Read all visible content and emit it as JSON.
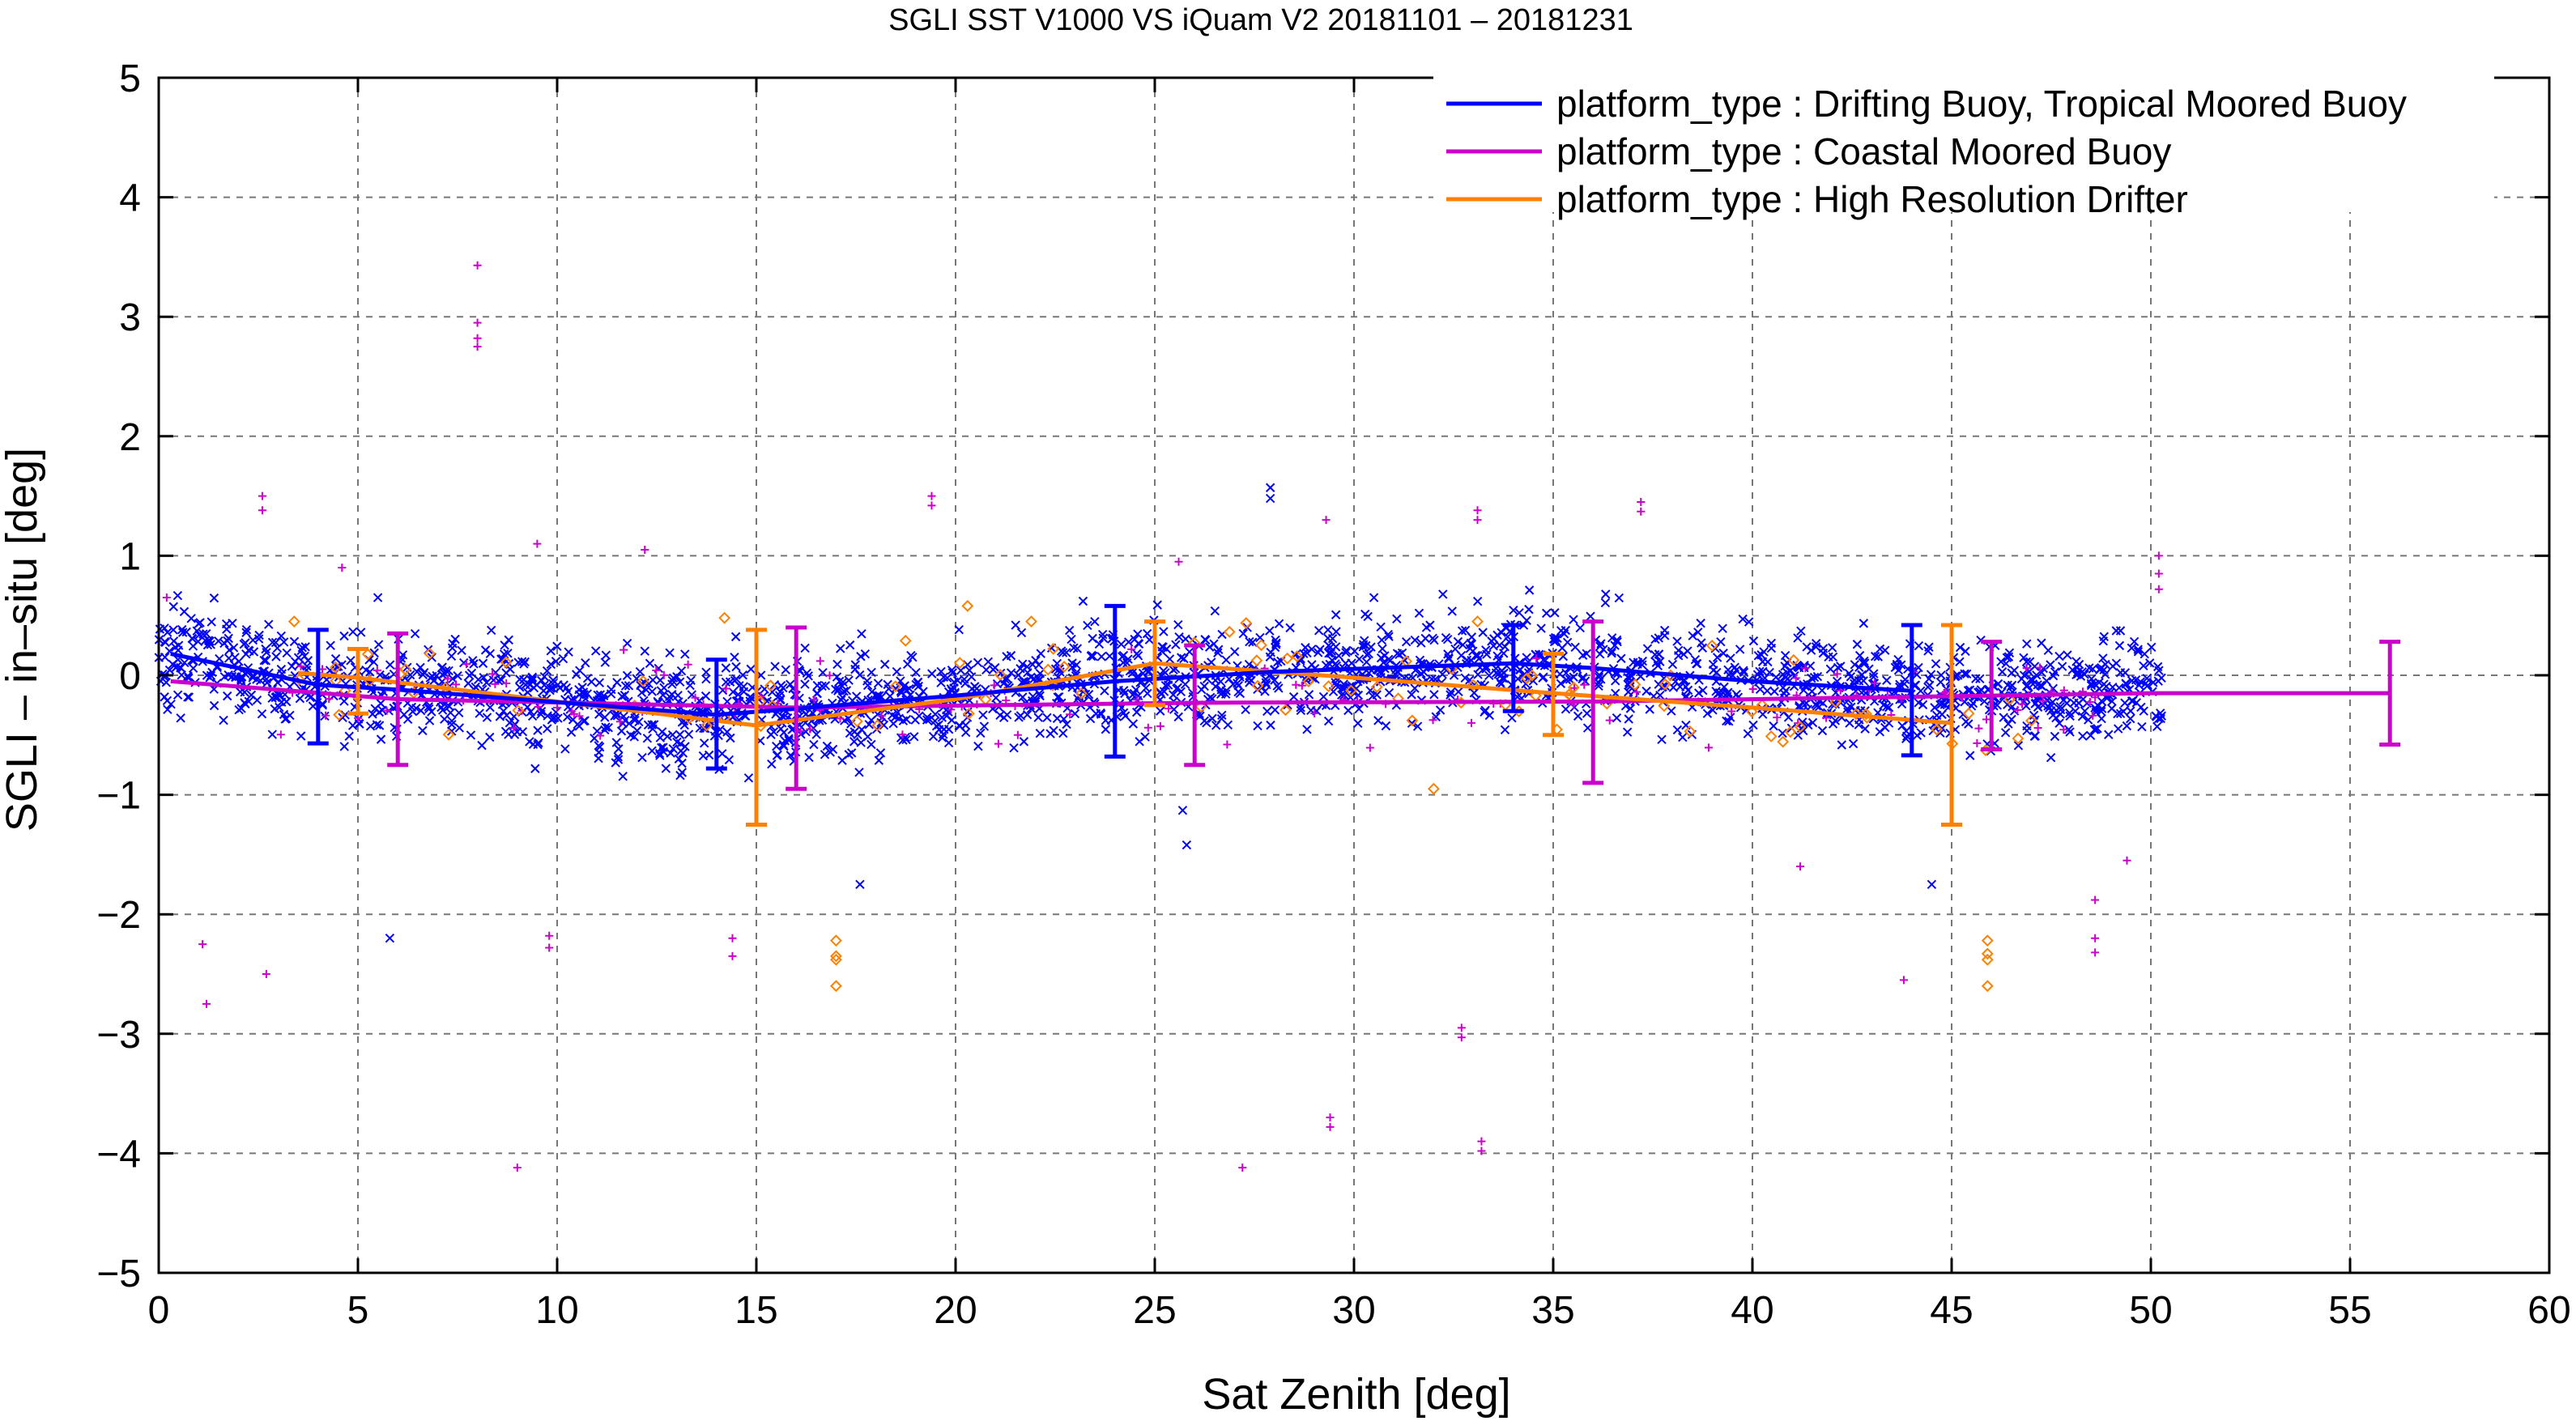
{
  "chart_data": {
    "type": "scatter",
    "title": "SGLI SST V1000 VS iQuam V2 20181101 – 20181231",
    "xlabel": "Sat Zenith [deg]",
    "ylabel": "SGLI – in–situ [deg]",
    "xlim": [
      0,
      60
    ],
    "ylim": [
      -5,
      5
    ],
    "xticks": [
      0,
      5,
      10,
      15,
      20,
      25,
      30,
      35,
      40,
      45,
      50,
      55,
      60
    ],
    "yticks": [
      -5,
      -4,
      -3,
      -2,
      -1,
      0,
      1,
      2,
      3,
      4,
      5
    ],
    "xtick_labels": [
      "0",
      "5",
      "10",
      "15",
      "20",
      "25",
      "30",
      "35",
      "40",
      "45",
      "50",
      "55",
      "60"
    ],
    "ytick_labels": [
      "−5",
      "−4",
      "−3",
      "−2",
      "−1",
      "0",
      "1",
      "2",
      "3",
      "4",
      "5"
    ],
    "grid": true,
    "legend_position": "top-right",
    "series": [
      {
        "name": "platform_type : Drifting Buoy, Tropical Moored Buoy",
        "color": "#0000ff",
        "marker": "x",
        "mean_line": {
          "x": [
            0.3,
            4,
            6,
            14,
            16,
            20,
            24,
            28,
            34,
            36,
            40,
            44
          ],
          "y": [
            0.18,
            -0.08,
            -0.12,
            -0.33,
            -0.28,
            -0.17,
            -0.05,
            0.03,
            0.1,
            0.06,
            -0.05,
            -0.13
          ]
        },
        "error_bars": [
          {
            "x": 4,
            "y": -0.08,
            "low": -0.57,
            "high": 0.38
          },
          {
            "x": 14,
            "y": -0.33,
            "low": -0.78,
            "high": 0.13
          },
          {
            "x": 24,
            "y": -0.05,
            "low": -0.68,
            "high": 0.58
          },
          {
            "x": 34,
            "y": 0.1,
            "low": -0.3,
            "high": 0.42
          },
          {
            "x": 44,
            "y": -0.13,
            "low": -0.67,
            "high": 0.42
          }
        ],
        "outliers": [
          [
            27.9,
            1.57
          ],
          [
            27.9,
            1.48
          ],
          [
            5.8,
            -2.2
          ],
          [
            25.7,
            -1.13
          ],
          [
            25.8,
            -1.42
          ],
          [
            17.6,
            -1.75
          ],
          [
            44.5,
            -1.75
          ],
          [
            23.2,
            0.62
          ],
          [
            30.5,
            0.65
          ],
          [
            5.5,
            0.65
          ]
        ]
      },
      {
        "name": "platform_type : Coastal Moored Buoy",
        "color": "#cc00cc",
        "marker": "+",
        "mean_line": {
          "x": [
            0.3,
            6,
            16,
            26,
            36,
            46,
            50,
            56
          ],
          "y": [
            -0.05,
            -0.2,
            -0.27,
            -0.23,
            -0.22,
            -0.17,
            -0.15,
            -0.15
          ]
        },
        "error_bars": [
          {
            "x": 6,
            "y": -0.2,
            "low": -0.75,
            "high": 0.35
          },
          {
            "x": 16,
            "y": -0.27,
            "low": -0.95,
            "high": 0.4
          },
          {
            "x": 26,
            "y": -0.23,
            "low": -0.75,
            "high": 0.25
          },
          {
            "x": 36,
            "y": -0.22,
            "low": -0.9,
            "high": 0.45
          },
          {
            "x": 46,
            "y": -0.17,
            "low": -0.62,
            "high": 0.28
          },
          {
            "x": 56,
            "y": -0.15,
            "low": -0.58,
            "high": 0.28
          }
        ],
        "outliers": [
          [
            8,
            3.43
          ],
          [
            8,
            2.95
          ],
          [
            8,
            2.82
          ],
          [
            8,
            2.75
          ],
          [
            2.6,
            1.5
          ],
          [
            2.6,
            1.38
          ],
          [
            19.4,
            1.5
          ],
          [
            19.4,
            1.42
          ],
          [
            37.2,
            1.45
          ],
          [
            37.2,
            1.37
          ],
          [
            33.1,
            1.38
          ],
          [
            33.1,
            1.3
          ],
          [
            9,
            -4.12
          ],
          [
            27.2,
            -4.12
          ],
          [
            33.2,
            -3.9
          ],
          [
            33.2,
            -3.98
          ],
          [
            29.4,
            -3.7
          ],
          [
            29.4,
            -3.78
          ],
          [
            32.7,
            -2.95
          ],
          [
            32.7,
            -3.03
          ],
          [
            1.1,
            -2.25
          ],
          [
            1.2,
            -2.75
          ],
          [
            2.7,
            -2.5
          ],
          [
            9.8,
            -2.18
          ],
          [
            9.8,
            -2.28
          ],
          [
            14.4,
            -2.2
          ],
          [
            14.4,
            -2.35
          ],
          [
            48.6,
            -2.2
          ],
          [
            48.6,
            -2.32
          ],
          [
            48.6,
            -1.88
          ],
          [
            43.8,
            -2.55
          ],
          [
            50.2,
            1.0
          ],
          [
            50.2,
            0.85
          ],
          [
            50.2,
            0.72
          ],
          [
            0.2,
            0.65
          ],
          [
            4.6,
            0.9
          ],
          [
            25.6,
            0.95
          ],
          [
            29.3,
            1.3
          ],
          [
            41.2,
            -1.6
          ],
          [
            49.4,
            -1.55
          ],
          [
            12.2,
            1.05
          ],
          [
            9.5,
            1.1
          ]
        ]
      },
      {
        "name": "platform_type : High Resolution Drifter",
        "color": "#ff8000",
        "marker": "diamond",
        "mean_line": {
          "x": [
            3.5,
            5,
            10,
            15,
            20,
            25,
            30,
            35,
            40,
            45
          ],
          "y": [
            0.02,
            -0.02,
            -0.22,
            -0.42,
            -0.2,
            0.1,
            -0.02,
            -0.15,
            -0.27,
            -0.4
          ]
        },
        "error_bars": [
          {
            "x": 5,
            "y": -0.02,
            "low": -0.32,
            "high": 0.22
          },
          {
            "x": 15,
            "y": -0.42,
            "low": -1.25,
            "high": 0.38
          },
          {
            "x": 25,
            "y": 0.1,
            "low": -0.25,
            "high": 0.45
          },
          {
            "x": 35,
            "y": -0.15,
            "low": -0.5,
            "high": 0.18
          },
          {
            "x": 45,
            "y": -0.4,
            "low": -1.25,
            "high": 0.42
          }
        ],
        "outliers": [
          [
            17,
            -2.22
          ],
          [
            17,
            -2.35
          ],
          [
            17,
            -2.38
          ],
          [
            17,
            -2.6
          ],
          [
            45.9,
            -2.22
          ],
          [
            45.9,
            -2.33
          ],
          [
            45.9,
            -2.38
          ],
          [
            45.9,
            -2.6
          ],
          [
            20.3,
            0.58
          ],
          [
            32,
            -0.95
          ],
          [
            3.4,
            0.45
          ],
          [
            33.1,
            0.45
          ],
          [
            14.2,
            0.48
          ],
          [
            21.9,
            0.45
          ],
          [
            47,
            -0.38
          ]
        ]
      }
    ]
  }
}
